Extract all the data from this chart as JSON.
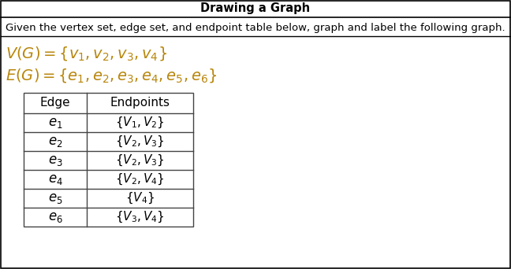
{
  "title": "Drawing a Graph",
  "description": "Given the vertex set, edge set, and endpoint table below, graph and label the following graph.",
  "table_headers": [
    "Edge",
    "Endpoints"
  ],
  "table_rows": [
    [
      "e_1",
      "\\{V_1, V_2\\}"
    ],
    [
      "e_2",
      "\\{V_2, V_3\\}"
    ],
    [
      "e_3",
      "\\{V_2, V_3\\}"
    ],
    [
      "e_4",
      "\\{V_2, V_4\\}"
    ],
    [
      "e_5",
      "\\{V_4\\}"
    ],
    [
      "e_6",
      "\\{V_3, V_4\\}"
    ]
  ],
  "bg_color": "#ffffff",
  "border_color": "#000000",
  "text_color": "#000000",
  "math_color": "#B8860B",
  "table_border_color": "#444444",
  "title_fontsize": 10.5,
  "body_fontsize": 9.5,
  "math_fontsize": 14,
  "table_fontsize": 11
}
